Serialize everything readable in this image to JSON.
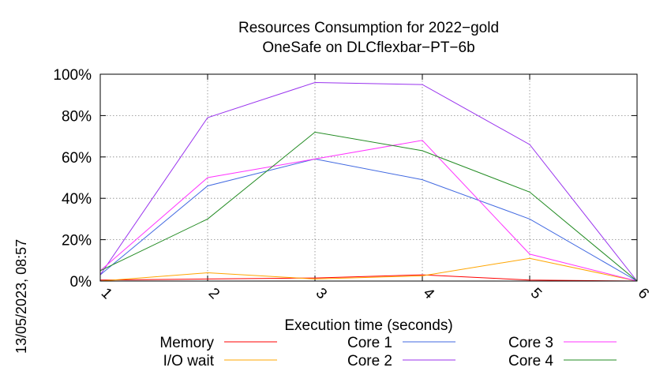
{
  "side_label": "13/05/2023, 08:57",
  "chart_data": {
    "type": "line",
    "title": "Resources Consumption for 2022−gold",
    "subtitle": "OneSafe on DLCflexbar−PT−6b",
    "xlabel": "Execution time (seconds)",
    "ylabel": "",
    "x": [
      1,
      2,
      3,
      4,
      5,
      6
    ],
    "xlim": [
      1,
      6
    ],
    "ylim": [
      0,
      100
    ],
    "y_ticks": [
      0,
      20,
      40,
      60,
      80,
      100
    ],
    "y_tick_labels": [
      "0%",
      "20%",
      "40%",
      "60%",
      "80%",
      "100%"
    ],
    "x_tick_labels": [
      "1",
      "2",
      "3",
      "4",
      "5",
      "6"
    ],
    "grid": true,
    "legend_placement": "bottom",
    "series": [
      {
        "name": "Memory",
        "color": "#ff0000",
        "values": [
          0.5,
          1,
          1.5,
          3,
          0.5,
          0
        ]
      },
      {
        "name": "I/O wait",
        "color": "#ffa500",
        "values": [
          0,
          4,
          1,
          2.5,
          11,
          0
        ]
      },
      {
        "name": "Core 1",
        "color": "#4169e1",
        "values": [
          3,
          46,
          59,
          49,
          30,
          0
        ]
      },
      {
        "name": "Core 2",
        "color": "#9933ee",
        "values": [
          3,
          79,
          96,
          95,
          66,
          0
        ]
      },
      {
        "name": "Core 3",
        "color": "#ff33ff",
        "values": [
          5,
          50,
          59,
          68,
          13,
          0
        ]
      },
      {
        "name": "Core 4",
        "color": "#228b22",
        "values": [
          5,
          30,
          72,
          63,
          43,
          0
        ]
      }
    ]
  }
}
